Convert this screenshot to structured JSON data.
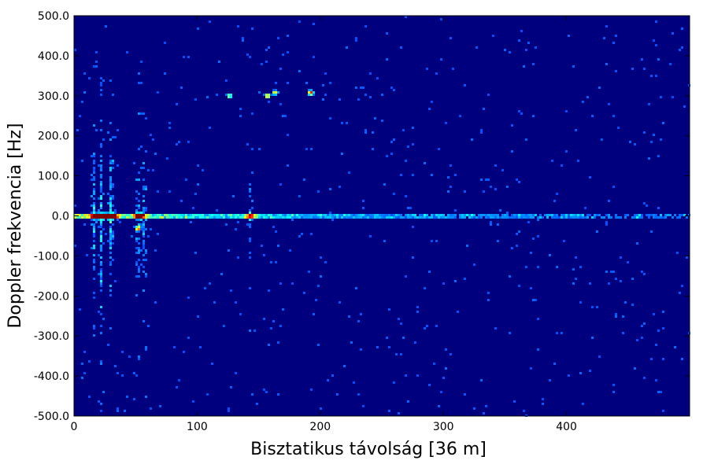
{
  "chart_data": {
    "type": "heatmap",
    "title": "",
    "xlabel": "Bisztatikus távolság [36 m]",
    "ylabel": "Doppler frekvencia [Hz]",
    "xlim": [
      0,
      500
    ],
    "ylim": [
      -500,
      500
    ],
    "grid": false,
    "colormap": "jet",
    "background_color": "#00007f",
    "x_ticks": [
      {
        "value": 0,
        "label": "0"
      },
      {
        "value": 100,
        "label": "100"
      },
      {
        "value": 200,
        "label": "200"
      },
      {
        "value": 300,
        "label": "300"
      },
      {
        "value": 400,
        "label": "400"
      }
    ],
    "y_ticks": [
      {
        "value": 500,
        "label": "500.0"
      },
      {
        "value": 400,
        "label": "400.0"
      },
      {
        "value": 300,
        "label": "300.0"
      },
      {
        "value": 200,
        "label": "200.0"
      },
      {
        "value": 100,
        "label": "100.0"
      },
      {
        "value": 0,
        "label": "0.0"
      },
      {
        "value": -100,
        "label": "-100.0"
      },
      {
        "value": -200,
        "label": "-200.0"
      },
      {
        "value": -300,
        "label": "-300.0"
      },
      {
        "value": -400,
        "label": "-400.0"
      },
      {
        "value": -500,
        "label": "-500.0"
      }
    ],
    "zero_doppler_ridge": {
      "doppler": 0,
      "x_from": 0,
      "x_to": 500
    },
    "clutter_bands": [
      {
        "x": 16,
        "intensity": 0.55
      },
      {
        "x": 22,
        "intensity": 0.6
      },
      {
        "x": 30,
        "intensity": 0.65
      },
      {
        "x": 52,
        "intensity": 0.55
      },
      {
        "x": 57,
        "intensity": 0.5
      },
      {
        "x": 143,
        "intensity": 0.35
      }
    ],
    "hot_spots": [
      {
        "x": 18,
        "y": 0,
        "intensity": 1.0
      },
      {
        "x": 25,
        "y": 0,
        "intensity": 0.95
      },
      {
        "x": 32,
        "y": 0,
        "intensity": 0.9
      },
      {
        "x": 53,
        "y": 0,
        "intensity": 0.95
      },
      {
        "x": 143,
        "y": 0,
        "intensity": 0.65
      }
    ],
    "targets": [
      {
        "x": 126,
        "y": 300,
        "intensity": 0.55
      },
      {
        "x": 157,
        "y": 300,
        "intensity": 0.75
      },
      {
        "x": 163,
        "y": 308,
        "intensity": 0.6
      },
      {
        "x": 192,
        "y": 308,
        "intensity": 0.85
      },
      {
        "x": 52,
        "y": -30,
        "intensity": 0.6
      }
    ]
  }
}
